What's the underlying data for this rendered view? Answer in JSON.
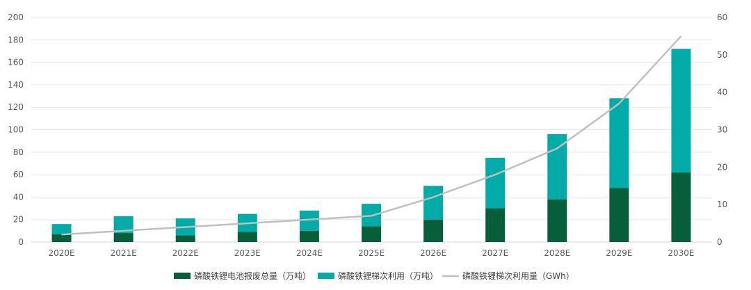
{
  "chart_data": {
    "type": "bar",
    "stacked": true,
    "categories": [
      "2020E",
      "2021E",
      "2022E",
      "2023E",
      "2024E",
      "2025E",
      "2026E",
      "2027E",
      "2028E",
      "2029E",
      "2030E"
    ],
    "series": [
      {
        "name": "磷酸铁锂电池报废总量（万吨）",
        "type": "bar",
        "axis": "left",
        "color": "#075e3b",
        "values": [
          7,
          8,
          6,
          9,
          10,
          14,
          20,
          30,
          38,
          48,
          62
        ]
      },
      {
        "name": "磷酸铁锂梯次利用（万吨）",
        "type": "bar",
        "axis": "left",
        "color": "#02aaa8",
        "values": [
          9,
          15,
          15,
          16,
          18,
          20,
          30,
          45,
          58,
          80,
          110
        ]
      },
      {
        "name": "磷酸铁锂梯次利用量（GWh）",
        "type": "line",
        "axis": "right",
        "color": "#bfbfbf",
        "values": [
          2,
          3,
          4,
          5,
          6,
          7,
          12,
          18,
          25,
          37,
          55
        ]
      }
    ],
    "y_left": {
      "min": 0,
      "max": 200,
      "ticks": [
        0,
        20,
        40,
        60,
        80,
        100,
        120,
        140,
        160,
        180,
        200
      ]
    },
    "y_right": {
      "min": 0,
      "max": 60,
      "ticks": [
        0,
        10,
        20,
        30,
        40,
        50,
        60
      ]
    },
    "grid": true,
    "legend_position": "bottom"
  }
}
